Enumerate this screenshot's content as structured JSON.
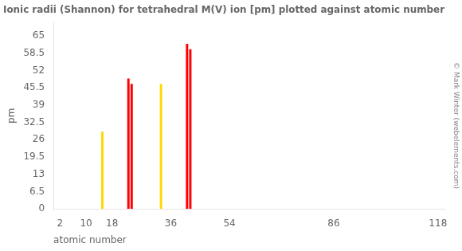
{
  "chart_data": {
    "type": "bar",
    "title": "Ionic radii (Shannon) for tetrahedral M(V) ion [pm] plotted against atomic number",
    "xlabel": "atomic number",
    "ylabel": "pm",
    "annotations": [
      "© Mark Winter (webelements.com)"
    ],
    "x": [
      15,
      23,
      24,
      33,
      41,
      42
    ],
    "values": [
      29,
      49,
      47,
      47,
      62,
      60
    ],
    "colors": [
      "#ffd700",
      "#ff0000",
      "#ff0000",
      "#ffd700",
      "#ff0000",
      "#ff0000"
    ],
    "xlim": [
      0,
      120
    ],
    "xticks": [
      2,
      10,
      18,
      36,
      54,
      86,
      118
    ],
    "ylim": [
      0,
      70
    ],
    "yticks": [
      0,
      6.5,
      13,
      19.5,
      26,
      32.5,
      39,
      45.5,
      52,
      58.5,
      65
    ],
    "grid": false
  }
}
